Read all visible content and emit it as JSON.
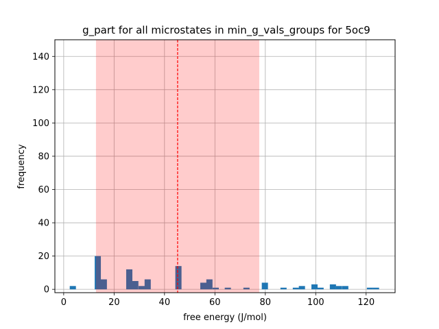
{
  "chart_data": {
    "type": "bar",
    "title": "g_part for all microstates in min_g_vals_groups for 5oc9",
    "xlabel": "free energy (J/mol)",
    "ylabel": "frequency",
    "xlim": [
      -3.5,
      131.5
    ],
    "ylim": [
      -2,
      150
    ],
    "xticks": [
      0,
      20,
      40,
      60,
      80,
      100,
      120
    ],
    "yticks": [
      0,
      20,
      40,
      60,
      80,
      100,
      120,
      140
    ],
    "grid": true,
    "bin_width": 2.45,
    "bar_color": "#1f77b4",
    "bins": [
      {
        "x": 2.4,
        "count": 2
      },
      {
        "x": 12.3,
        "count": 20
      },
      {
        "x": 14.7,
        "count": 6
      },
      {
        "x": 24.8,
        "count": 12
      },
      {
        "x": 27.2,
        "count": 5
      },
      {
        "x": 29.7,
        "count": 2
      },
      {
        "x": 32.1,
        "count": 6
      },
      {
        "x": 44.3,
        "count": 14
      },
      {
        "x": 54.2,
        "count": 4
      },
      {
        "x": 56.6,
        "count": 6
      },
      {
        "x": 59.1,
        "count": 1
      },
      {
        "x": 63.9,
        "count": 1
      },
      {
        "x": 71.3,
        "count": 1
      },
      {
        "x": 78.6,
        "count": 4
      },
      {
        "x": 86.0,
        "count": 1
      },
      {
        "x": 90.9,
        "count": 1
      },
      {
        "x": 93.3,
        "count": 2
      },
      {
        "x": 98.3,
        "count": 3
      },
      {
        "x": 100.7,
        "count": 1
      },
      {
        "x": 105.6,
        "count": 3
      },
      {
        "x": 108.0,
        "count": 2
      },
      {
        "x": 110.5,
        "count": 2
      },
      {
        "x": 120.3,
        "count": 1
      },
      {
        "x": 122.7,
        "count": 1
      }
    ],
    "shaded_region": {
      "x_start": 12.8,
      "x_end": 77.6,
      "color": "#ff0000",
      "alpha": 0.2
    },
    "vline": {
      "x": 45.2,
      "color": "#ff0000",
      "style": "dashed"
    }
  }
}
